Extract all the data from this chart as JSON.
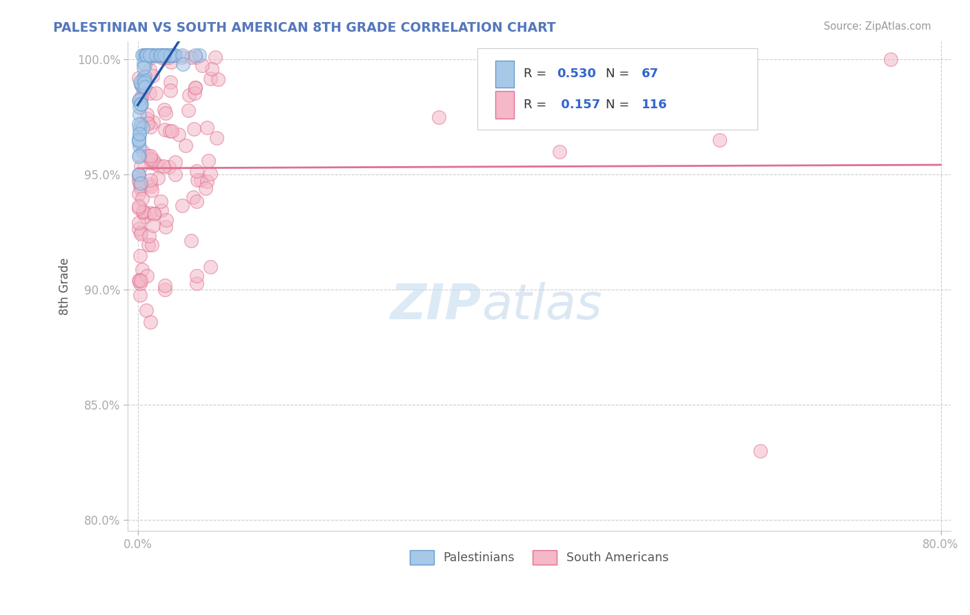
{
  "title": "PALESTINIAN VS SOUTH AMERICAN 8TH GRADE CORRELATION CHART",
  "source": "Source: ZipAtlas.com",
  "ylabel": "8th Grade",
  "blue_R": 0.53,
  "blue_N": 67,
  "pink_R": 0.157,
  "pink_N": 116,
  "blue_fill_color": "#a8c8e8",
  "pink_fill_color": "#f4b8c8",
  "blue_edge_color": "#6699cc",
  "pink_edge_color": "#e07090",
  "blue_line_color": "#2255aa",
  "pink_line_color": "#e07090",
  "background_color": "#ffffff",
  "grid_color": "#cccccc",
  "title_color": "#5577bb",
  "tick_color": "#4488cc",
  "watermark_color": "#d5e8f5",
  "legend_text_color": "#333333",
  "legend_num_color": "#3366cc",
  "source_color": "#999999",
  "ylabel_color": "#555555",
  "xlim": [
    0.0,
    0.8
  ],
  "ylim": [
    0.795,
    1.008
  ],
  "xtick_positions": [
    0.0,
    0.8
  ],
  "xtick_labels": [
    "0.0%",
    "80.0%"
  ],
  "ytick_positions": [
    0.8,
    0.85,
    0.9,
    0.95,
    1.0
  ],
  "ytick_labels": [
    "80.0%",
    "85.0%",
    "90.0%",
    "95.0%",
    "100.0%"
  ]
}
